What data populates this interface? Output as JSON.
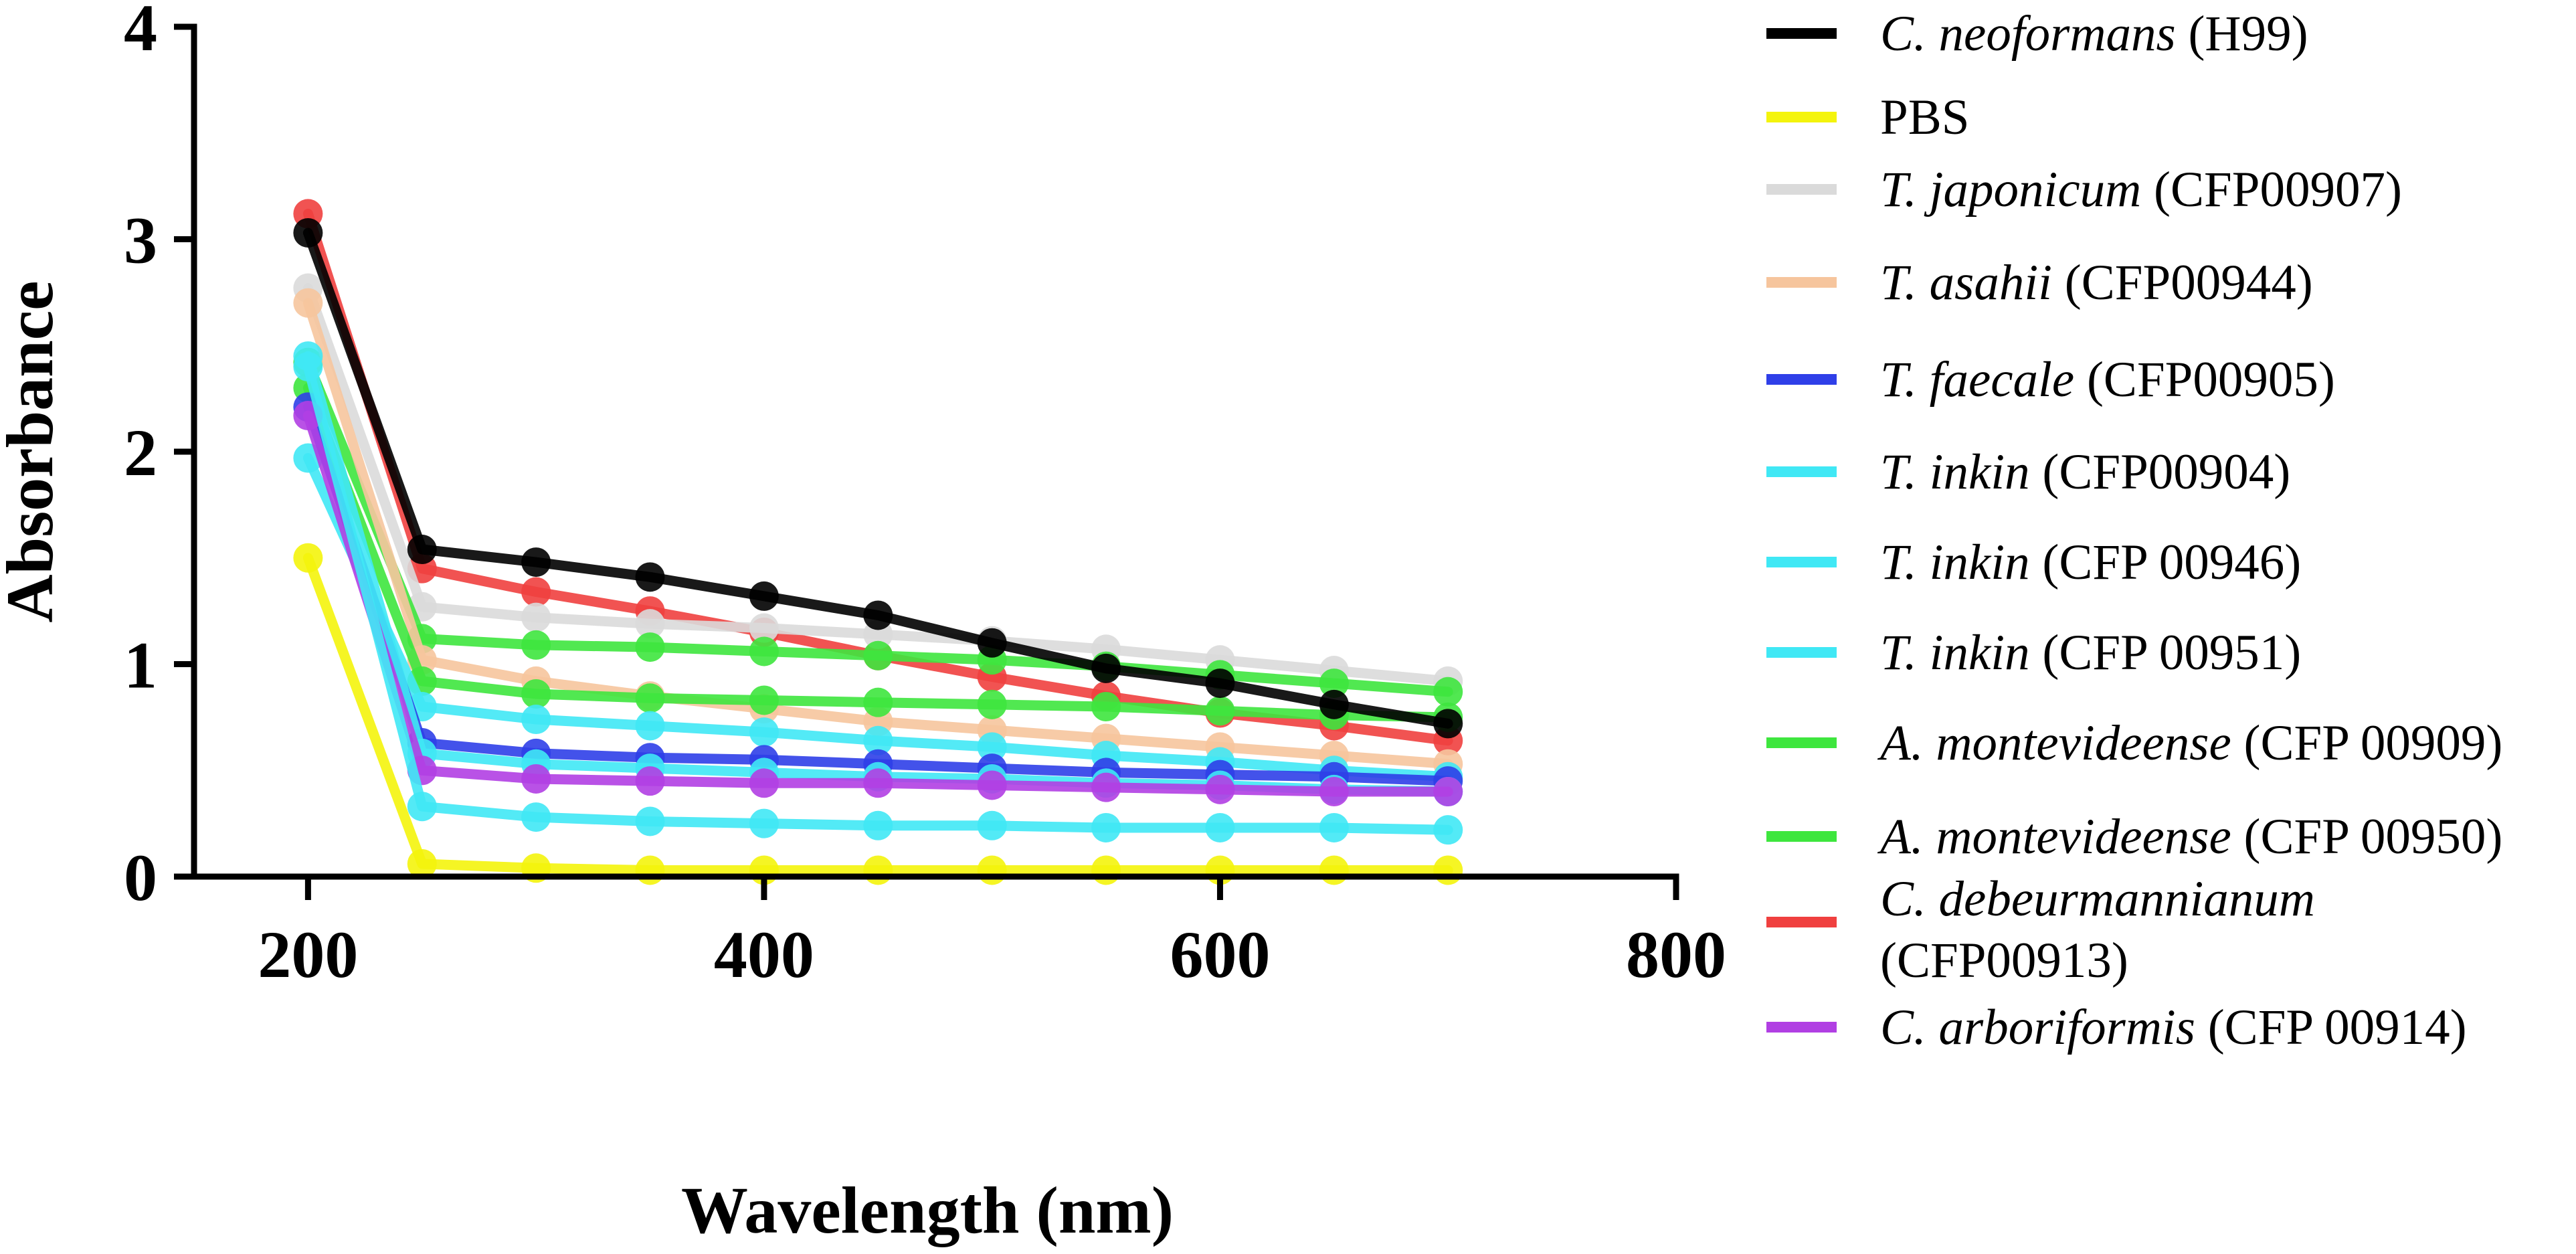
{
  "chart_data": {
    "type": "line",
    "title": "",
    "xlabel": "Wavelength (nm)",
    "ylabel": "Absorbance",
    "xlim": [
      150,
      800
    ],
    "ylim": [
      0,
      4
    ],
    "xticks": [
      200,
      400,
      600,
      800
    ],
    "yticks": [
      0,
      1,
      2,
      3,
      4
    ],
    "x": [
      200,
      250,
      300,
      350,
      400,
      450,
      500,
      550,
      600,
      650,
      700
    ],
    "legend_position": "right",
    "series": [
      {
        "name": "C. debeurmannianum (CFP00913)",
        "italic": "C. debeurmannianum",
        "suffix": "(CFP00913)",
        "color": "#f0403f",
        "values": [
          3.12,
          1.45,
          1.34,
          1.25,
          1.15,
          1.04,
          0.94,
          0.85,
          0.77,
          0.71,
          0.64
        ]
      },
      {
        "name": "T. japonicum (CFP00907)",
        "italic": "T. japonicum",
        "suffix": "(CFP00907)",
        "color": "#dadada",
        "values": [
          2.77,
          1.27,
          1.22,
          1.19,
          1.17,
          1.14,
          1.11,
          1.07,
          1.02,
          0.97,
          0.92
        ]
      },
      {
        "name": "A. montevideense (CFP 00909)",
        "italic": "A. montevideense",
        "suffix": "(CFP 00909)",
        "color": "#3ee63e",
        "values": [
          2.42,
          1.12,
          1.09,
          1.08,
          1.06,
          1.04,
          1.02,
          0.99,
          0.95,
          0.91,
          0.87
        ]
      },
      {
        "name": "T. asahii (CFP00944)",
        "italic": "T. asahii",
        "suffix": "(CFP00944)",
        "color": "#f6c59d",
        "values": [
          2.7,
          1.02,
          0.92,
          0.85,
          0.79,
          0.73,
          0.69,
          0.65,
          0.61,
          0.57,
          0.53
        ]
      },
      {
        "name": "A. montevideense (CFP 00950)",
        "italic": "A. montevideense",
        "suffix": "(CFP 00950)",
        "color": "#3ee63e",
        "values": [
          2.3,
          0.92,
          0.86,
          0.84,
          0.83,
          0.82,
          0.81,
          0.8,
          0.78,
          0.76,
          0.75
        ]
      },
      {
        "name": "T. inkin (CFP00904)",
        "italic": "T. inkin",
        "suffix": "(CFP00904)",
        "color": "#40e8f5",
        "values": [
          1.97,
          0.8,
          0.74,
          0.71,
          0.68,
          0.64,
          0.61,
          0.57,
          0.54,
          0.5,
          0.47
        ]
      },
      {
        "name": "T. faecale (CFP00905)",
        "italic": "T. faecale",
        "suffix": "(CFP00905)",
        "color": "#2f3fe8",
        "values": [
          2.21,
          0.63,
          0.58,
          0.56,
          0.55,
          0.53,
          0.51,
          0.49,
          0.48,
          0.47,
          0.45
        ]
      },
      {
        "name": "T. inkin (CFP 00946)",
        "italic": "T. inkin",
        "suffix": "(CFP 00946)",
        "color": "#40e8f5",
        "values": [
          2.45,
          0.58,
          0.53,
          0.51,
          0.49,
          0.47,
          0.46,
          0.44,
          0.43,
          0.41,
          0.4
        ]
      },
      {
        "name": "C. arboriformis (CFP 00914)",
        "italic": "C. arboriformis",
        "suffix": "(CFP 00914)",
        "color": "#b13fe3",
        "values": [
          2.17,
          0.5,
          0.46,
          0.45,
          0.44,
          0.44,
          0.43,
          0.42,
          0.41,
          0.4,
          0.4
        ]
      },
      {
        "name": "T. inkin (CFP 00951)",
        "italic": "T. inkin",
        "suffix": "(CFP 00951)",
        "color": "#40e8f5",
        "values": [
          2.4,
          0.33,
          0.28,
          0.26,
          0.25,
          0.24,
          0.24,
          0.23,
          0.23,
          0.23,
          0.22
        ]
      },
      {
        "name": "PBS",
        "italic": "",
        "suffix": "PBS",
        "color": "#f4f40c",
        "values": [
          1.5,
          0.06,
          0.04,
          0.03,
          0.03,
          0.03,
          0.03,
          0.03,
          0.03,
          0.03,
          0.03
        ]
      },
      {
        "name": "C. neoformans (H99)",
        "italic": "C. neoformans",
        "suffix": "(H99)",
        "color": "#000000",
        "values": [
          3.03,
          1.54,
          1.48,
          1.41,
          1.32,
          1.23,
          1.1,
          0.98,
          0.91,
          0.81,
          0.72
        ]
      }
    ],
    "legend": [
      {
        "italic": "C. neoformans",
        "suffix": "(H99)",
        "color": "#000000"
      },
      {
        "italic": "",
        "suffix": "PBS",
        "color": "#f4f40c"
      },
      {
        "italic": "T. japonicum",
        "suffix": "(CFP00907)",
        "color": "#dadada"
      },
      {
        "italic": "T. asahii",
        "suffix": "(CFP00944)",
        "color": "#f6c59d"
      },
      {
        "italic": "T. faecale",
        "suffix": "(CFP00905)",
        "color": "#2f3fe8"
      },
      {
        "italic": "T. inkin",
        "suffix": "(CFP00904)",
        "color": "#40e8f5"
      },
      {
        "italic": "T. inkin",
        "suffix": "(CFP 00946)",
        "color": "#40e8f5"
      },
      {
        "italic": "T. inkin",
        "suffix": "(CFP 00951)",
        "color": "#40e8f5"
      },
      {
        "italic": "A. montevideense",
        "suffix": "(CFP 00909)",
        "color": "#3ee63e"
      },
      {
        "italic": "A. montevideense",
        "suffix": "(CFP 00950)",
        "color": "#3ee63e"
      },
      {
        "italic": "C. debeurmannianum",
        "suffix": "(CFP00913)",
        "color": "#f0403f",
        "wrap": true
      },
      {
        "italic": "C. arboriformis",
        "suffix": "(CFP 00914)",
        "color": "#b13fe3"
      }
    ]
  }
}
